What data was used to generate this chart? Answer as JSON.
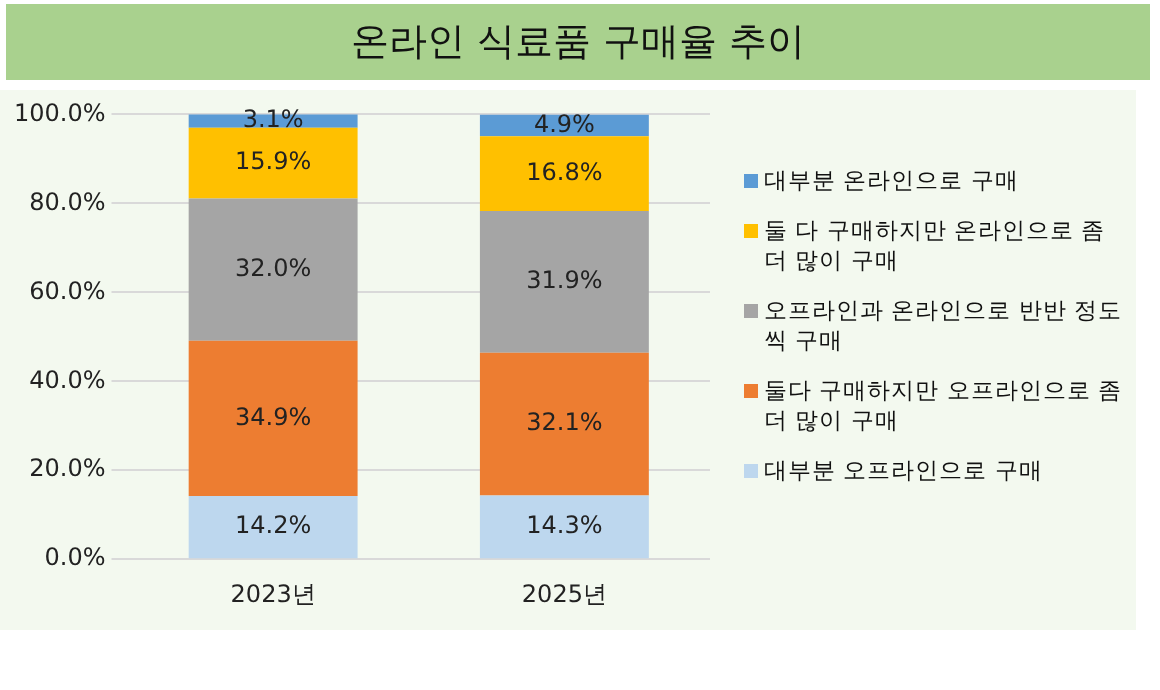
{
  "chart_data": {
    "type": "bar",
    "title": "온라인 식료품 구매율 추이",
    "categories": [
      "2023년",
      "2025년"
    ],
    "stacked": true,
    "ylim": [
      0,
      100
    ],
    "yticks": [
      {
        "value": 0,
        "label": "0.0%"
      },
      {
        "value": 20,
        "label": "20.0%"
      },
      {
        "value": 40,
        "label": "40.0%"
      },
      {
        "value": 60,
        "label": "60.0%"
      },
      {
        "value": 80,
        "label": "80.0%"
      },
      {
        "value": 100,
        "label": "100.0%"
      }
    ],
    "grid": "y",
    "legend": "right",
    "series": [
      {
        "name": "대부분 오프라인으로 구매",
        "color": "#bdd7ee",
        "values": [
          14.2,
          14.3
        ],
        "value_labels": [
          "14.2%",
          "14.3%"
        ]
      },
      {
        "name": "둘다 구매하지만 오프라인으로 좀 더 많이 구매",
        "color": "#ed7d31",
        "values": [
          34.9,
          32.1
        ],
        "value_labels": [
          "34.9%",
          "32.1%"
        ]
      },
      {
        "name": "오프라인과 온라인으로 반반 정도씩 구매",
        "color": "#a5a5a5",
        "values": [
          32.0,
          31.9
        ],
        "value_labels": [
          "32.0%",
          "31.9%"
        ]
      },
      {
        "name": "둘 다 구매하지만 온라인으로 좀 더 많이 구매",
        "color": "#ffc000",
        "values": [
          15.9,
          16.8
        ],
        "value_labels": [
          "15.9%",
          "16.8%"
        ]
      },
      {
        "name": "대부분 온라인으로 구매",
        "color": "#5b9bd5",
        "values": [
          3.1,
          4.9
        ],
        "value_labels": [
          "3.1%",
          "4.9%"
        ]
      }
    ]
  }
}
